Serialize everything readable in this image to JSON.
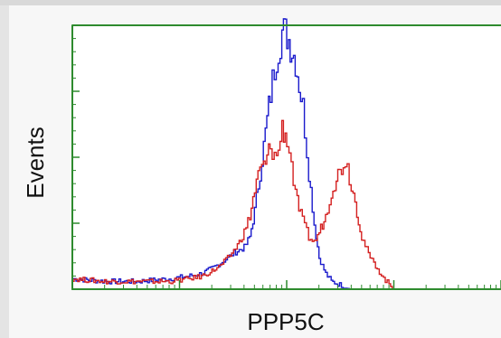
{
  "chart_data": {
    "type": "line",
    "xlabel": "PPP5C",
    "ylabel": "Events",
    "x_scale": "log",
    "x_tick_labels": [],
    "y_tick_labels": [],
    "xlim": [
      1,
      10000
    ],
    "ylim": [
      0,
      100
    ],
    "grid": false,
    "colors": {
      "frame": "#2e8b2e",
      "background": "#ffffff",
      "outside": "#f7f7f7"
    },
    "series": [
      {
        "color": "#1a1acc",
        "x": [
          1,
          2,
          4,
          8,
          12,
          16,
          20,
          24,
          28,
          32,
          36,
          40,
          45,
          50,
          56,
          63,
          70,
          80,
          90,
          100,
          120,
          140,
          160,
          180,
          200,
          230,
          260,
          300,
          350,
          400
        ],
        "y": [
          4,
          3,
          3,
          4,
          5,
          6,
          8,
          10,
          12,
          14,
          15,
          16,
          20,
          30,
          45,
          60,
          75,
          90,
          99,
          98,
          88,
          70,
          45,
          25,
          12,
          6,
          3,
          2,
          1,
          0
        ]
      },
      {
        "color": "#d42020",
        "x": [
          1,
          2,
          4,
          8,
          12,
          16,
          20,
          24,
          28,
          32,
          36,
          40,
          45,
          50,
          56,
          63,
          70,
          80,
          90,
          100,
          110,
          120,
          140,
          160,
          180,
          200,
          230,
          260,
          300,
          350,
          400,
          450,
          500,
          600,
          700,
          800,
          900,
          1000
        ],
        "y": [
          4,
          3,
          3,
          3,
          4,
          5,
          7,
          9,
          12,
          15,
          18,
          22,
          28,
          38,
          46,
          48,
          55,
          50,
          62,
          58,
          48,
          36,
          26,
          20,
          18,
          22,
          28,
          38,
          44,
          50,
          40,
          30,
          20,
          12,
          8,
          4,
          2,
          0
        ]
      }
    ]
  }
}
